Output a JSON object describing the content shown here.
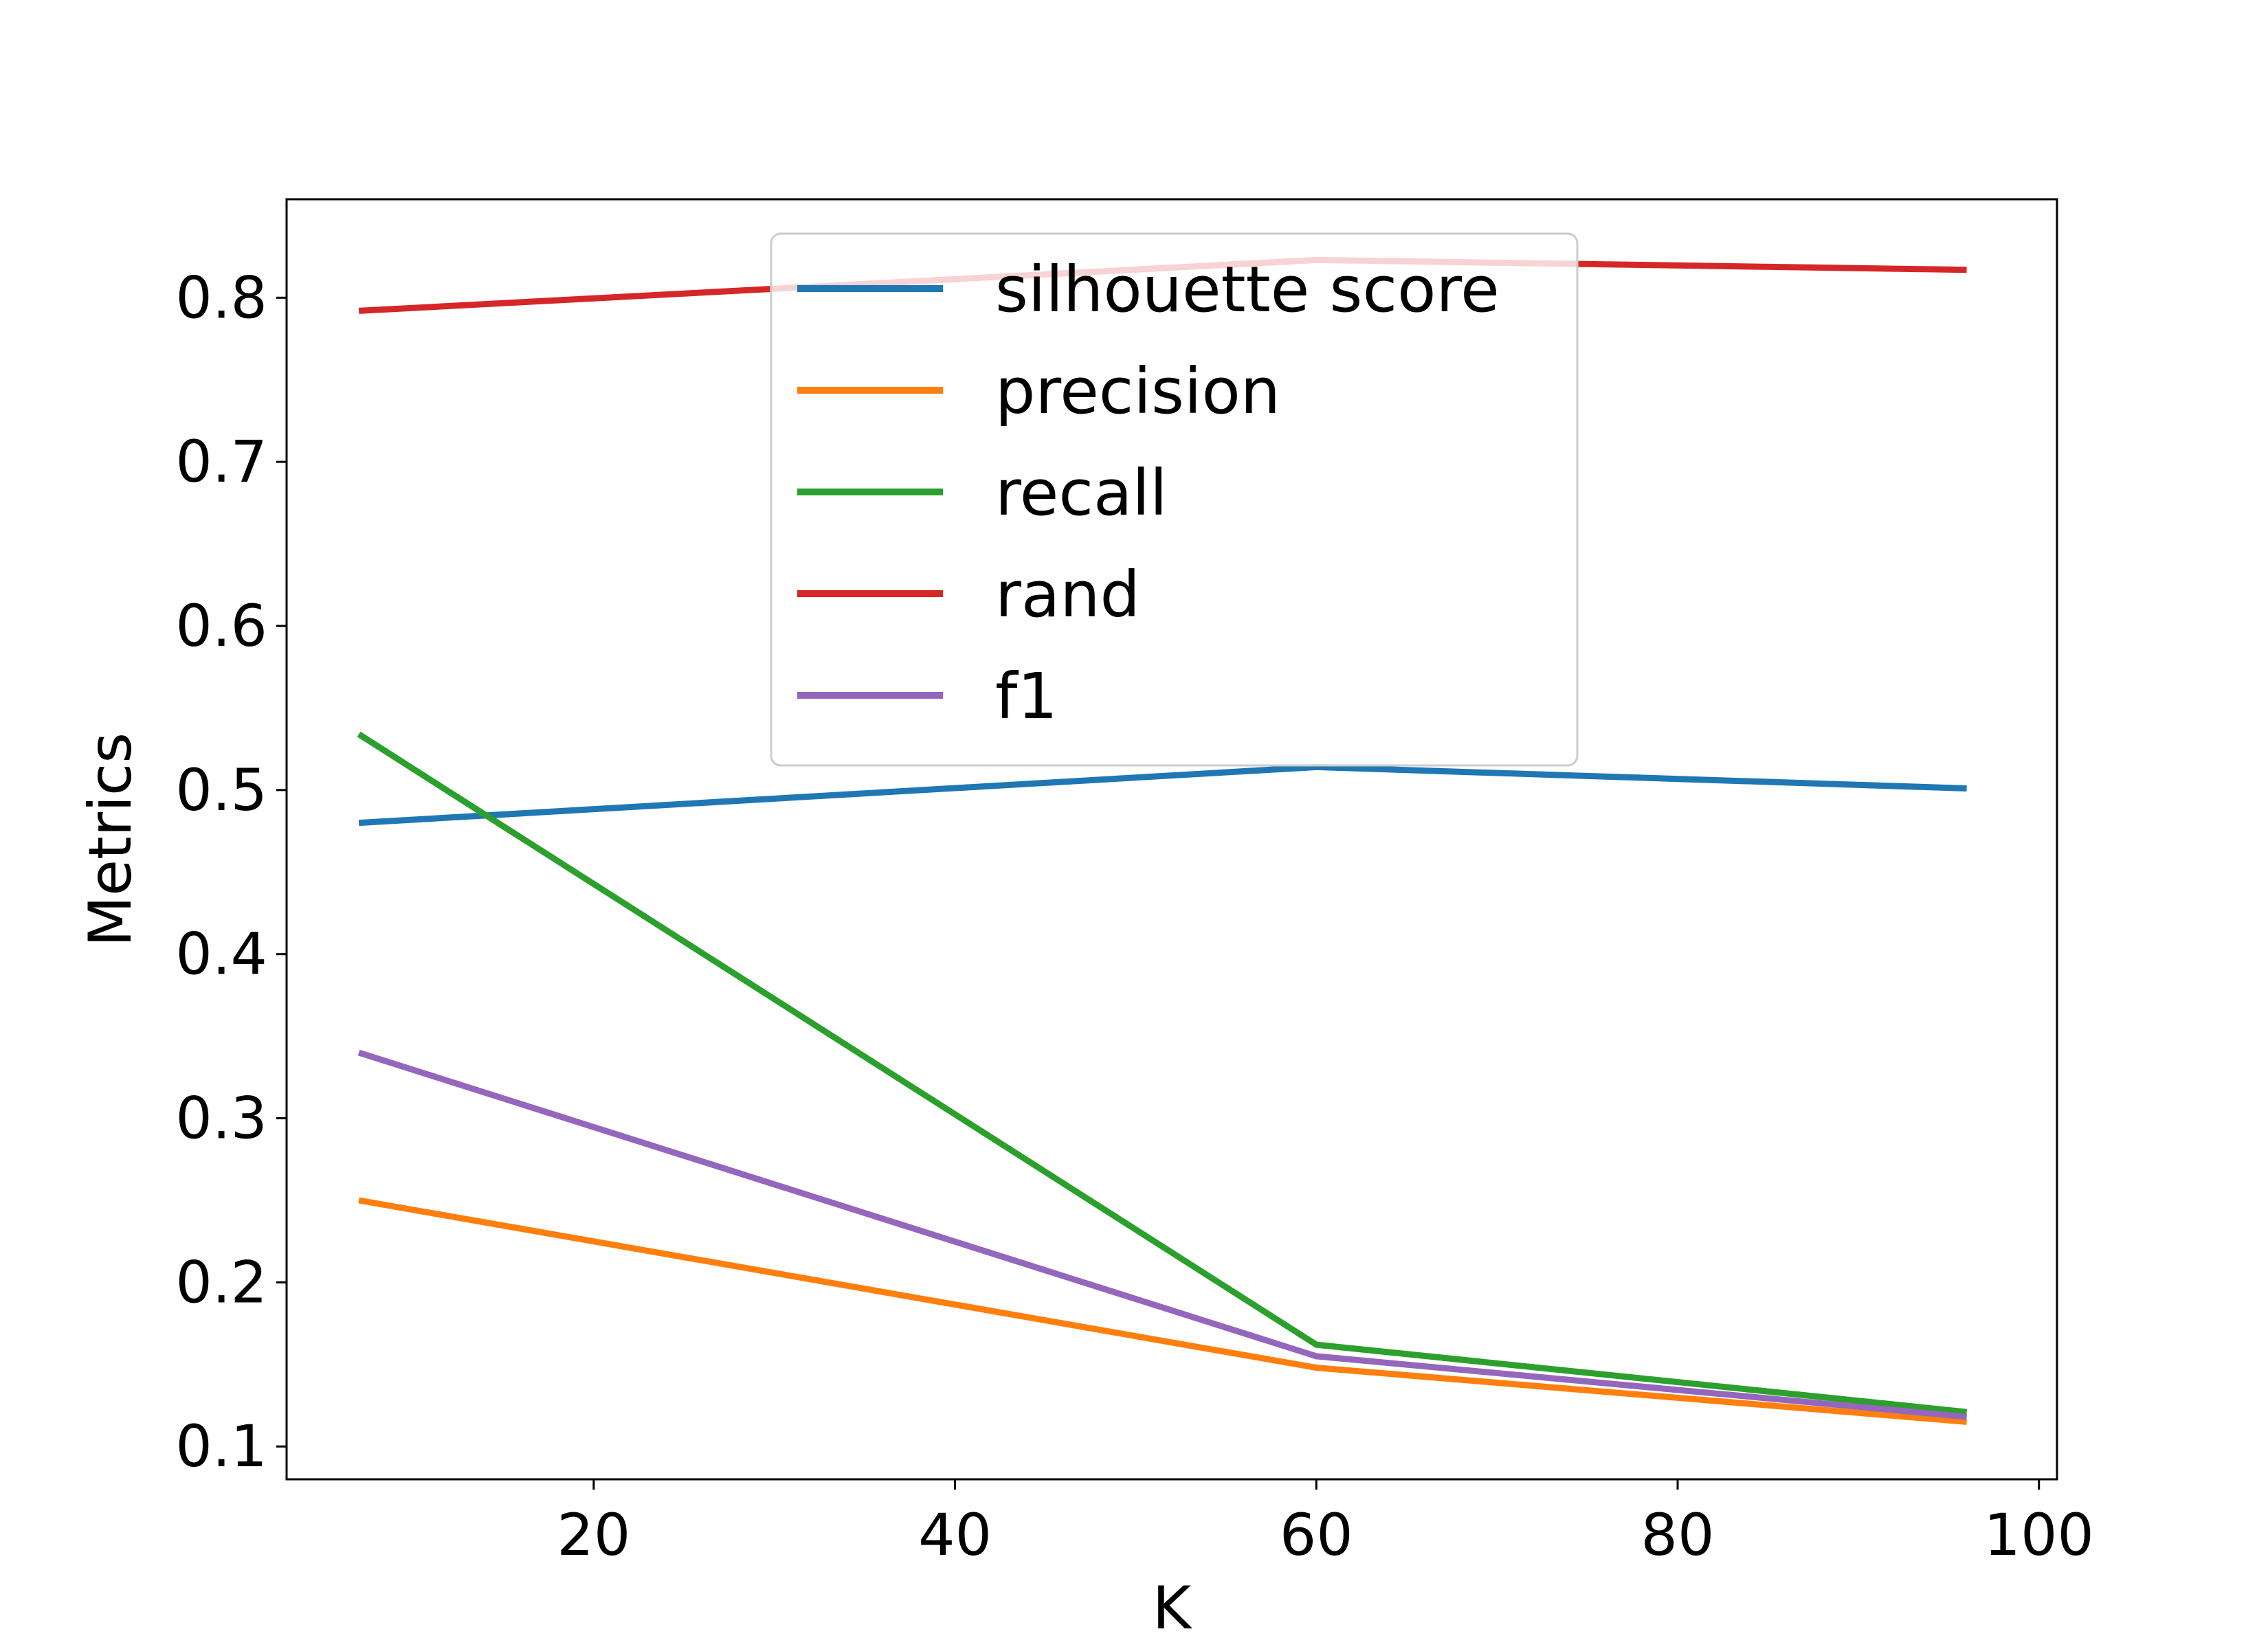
{
  "chart_data": {
    "type": "line",
    "xlabel": "K",
    "ylabel": "Metrics",
    "xlim": [
      3,
      101
    ],
    "ylim": [
      0.08,
      0.86
    ],
    "xticks": [
      20,
      40,
      60,
      80,
      100
    ],
    "yticks": [
      0.1,
      0.2,
      0.3,
      0.4,
      0.5,
      0.6,
      0.7,
      0.8
    ],
    "grid": false,
    "legend_position": "upper-center",
    "x": [
      7,
      60,
      96
    ],
    "series": [
      {
        "name": "silhouette score",
        "color": "#1f77b4",
        "values": [
          0.48,
          0.514,
          0.501
        ]
      },
      {
        "name": "precision",
        "color": "#ff7f0e",
        "values": [
          0.25,
          0.148,
          0.115
        ]
      },
      {
        "name": "recall",
        "color": "#2ca02c",
        "values": [
          0.534,
          0.162,
          0.121
        ]
      },
      {
        "name": "rand",
        "color": "#d62728",
        "values": [
          0.792,
          0.823,
          0.817
        ]
      },
      {
        "name": "f1",
        "color": "#9467bd",
        "values": [
          0.34,
          0.155,
          0.118
        ]
      }
    ]
  }
}
